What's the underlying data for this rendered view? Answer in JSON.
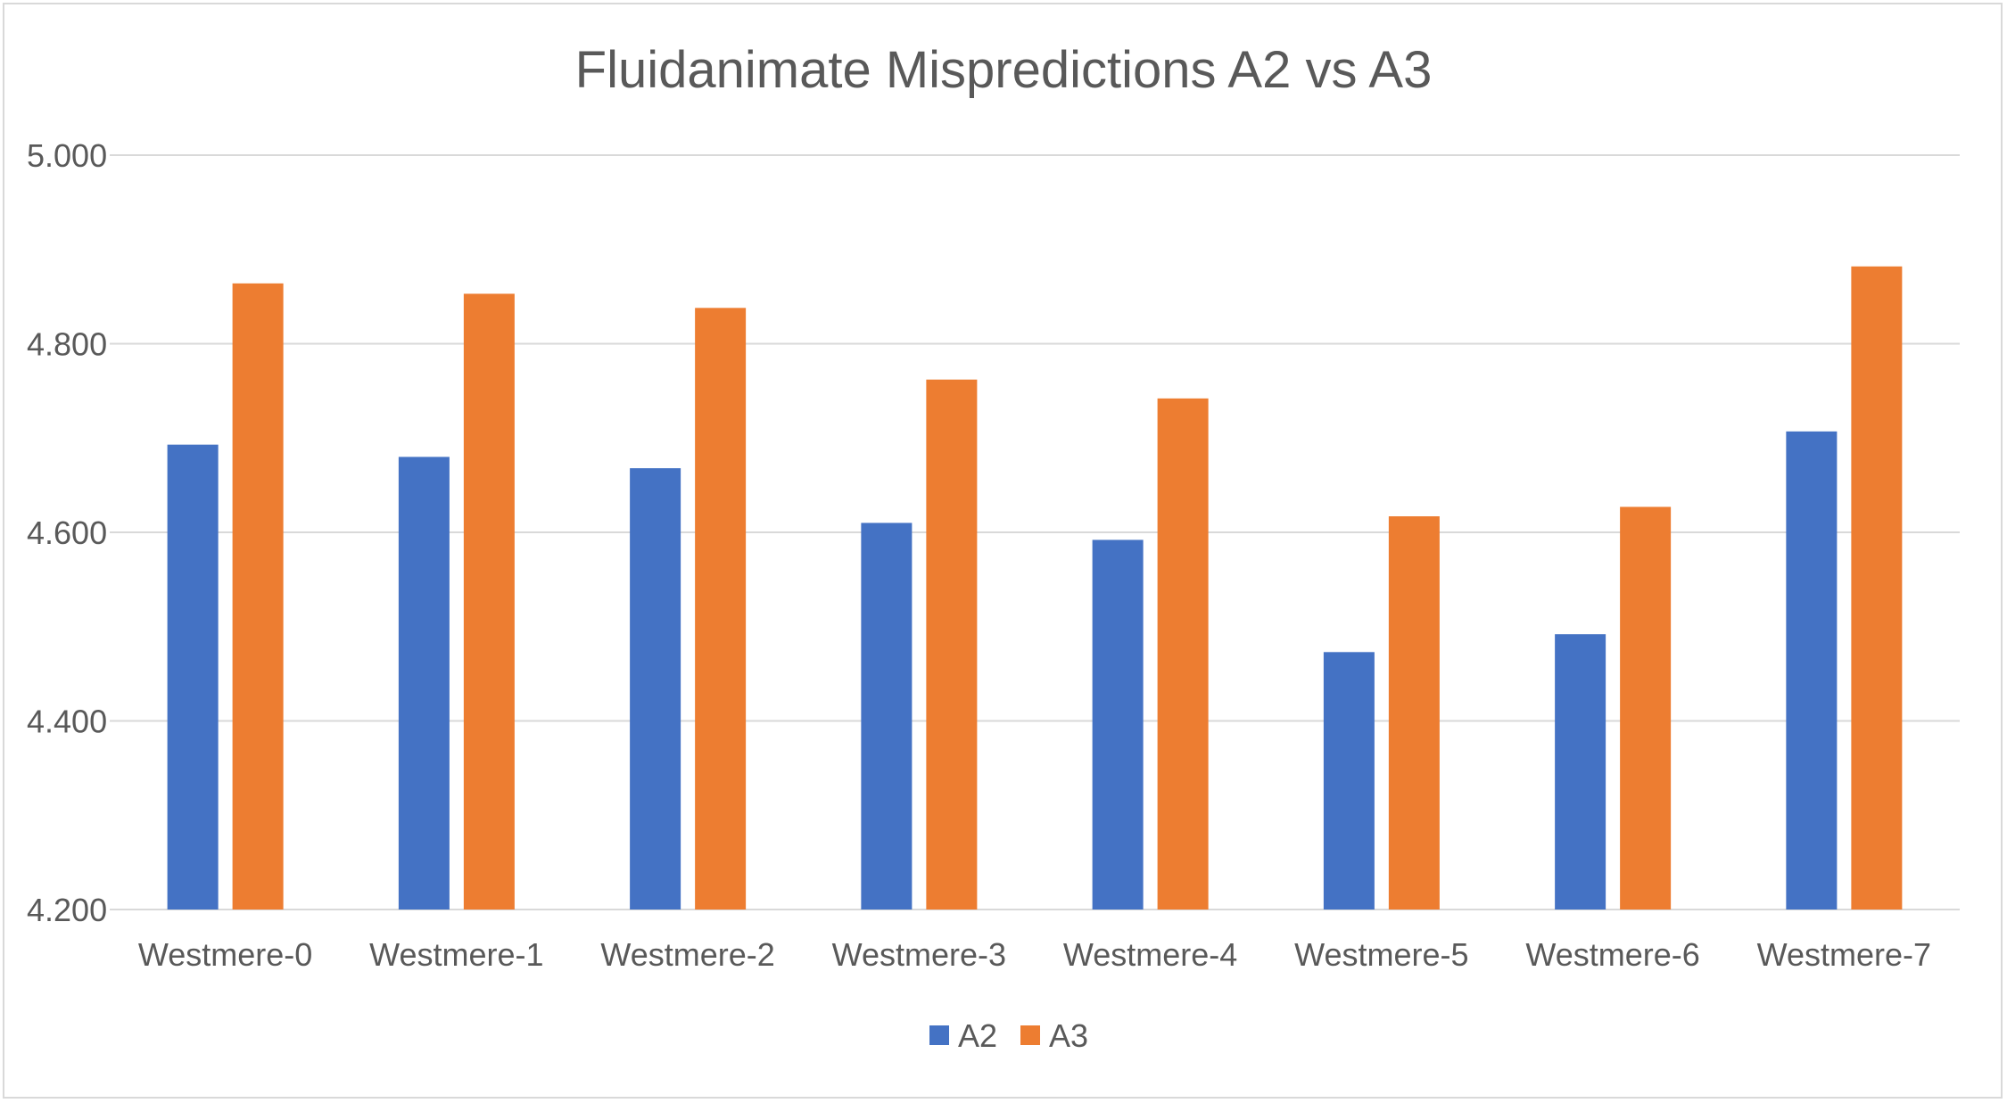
{
  "chart_data": {
    "type": "bar",
    "title": "Fluidanimate Mispredictions A2 vs A3",
    "xlabel": "",
    "ylabel": "",
    "ylim": [
      4.2,
      5.0
    ],
    "yticks": [
      "4.200",
      "4.400",
      "4.600",
      "4.800",
      "5.000"
    ],
    "ytick_values": [
      4.2,
      4.4,
      4.6,
      4.8,
      5.0
    ],
    "categories": [
      "Westmere-0",
      "Westmere-1",
      "Westmere-2",
      "Westmere-3",
      "Westmere-4",
      "Westmere-5",
      "Westmere-6",
      "Westmere-7"
    ],
    "series": [
      {
        "name": "A2",
        "color": "#4472c4",
        "values": [
          4.693,
          4.68,
          4.668,
          4.61,
          4.592,
          4.473,
          4.492,
          4.707
        ]
      },
      {
        "name": "A3",
        "color": "#ed7d31",
        "values": [
          4.864,
          4.853,
          4.838,
          4.762,
          4.742,
          4.617,
          4.627,
          4.882
        ]
      }
    ],
    "grid": true,
    "legend_position": "bottom",
    "gridline_color": "#d9d9d9"
  }
}
